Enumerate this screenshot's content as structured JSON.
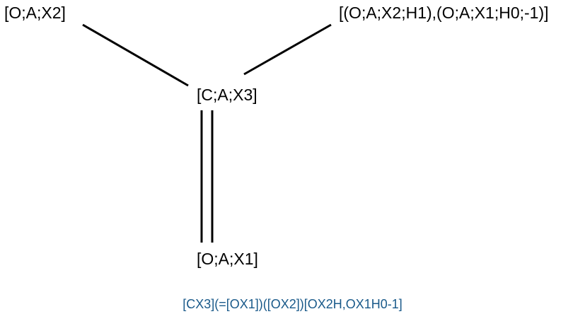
{
  "atoms": {
    "carbon": "[C;A;X3]",
    "oxygen_top_left": "[O;A;X2]",
    "oxygen_top_right": "[(O;A;X2;H1),(O;A;X1;H0;-1)]",
    "oxygen_bottom": "[O;A;X1]"
  },
  "caption": "[CX3](=[OX1])([OX2])[OX2H,OX1H0-1]",
  "colors": {
    "text": "#000000",
    "bond": "#000000",
    "caption": "#1a5a8a"
  }
}
